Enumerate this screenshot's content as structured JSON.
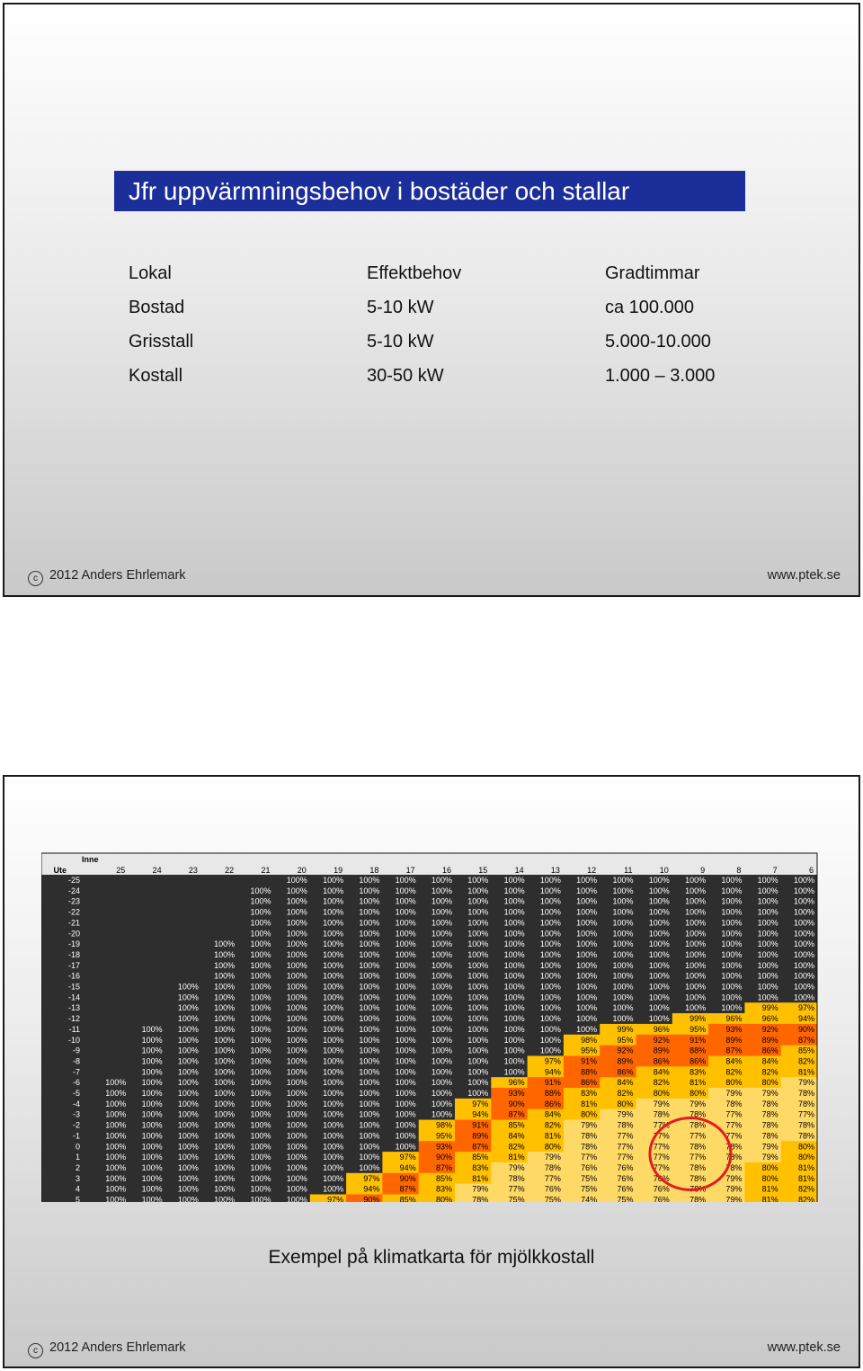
{
  "slide1": {
    "title": "Jfr uppvärmningsbehov i bostäder och stallar",
    "rows": [
      [
        "Lokal",
        "Effektbehov",
        "Gradtimmar"
      ],
      [
        "Bostad",
        "5-10 kW",
        "ca 100.000"
      ],
      [
        "Grisstall",
        "5-10 kW",
        "5.000-10.000"
      ],
      [
        "Kostall",
        "30-50 kW",
        "1.000 – 3.000"
      ]
    ],
    "footer_left": "2012 Anders Ehrlemark",
    "footer_right": "www.ptek.se"
  },
  "slide2": {
    "caption": "Exempel på klimatkarta för mjölkkostall",
    "footer_left": "2012 Anders Ehrlemark",
    "footer_right": "www.ptek.se"
  },
  "colors": {
    "title_bg": "#1c2e9a",
    "table_dark": "#2e2e2e",
    "yellow": "#ffc000",
    "orange": "#ff6600",
    "highlight_circle": "#e31b23"
  },
  "chart_data": {
    "type": "heatmap",
    "corner_label_top": "Inne",
    "corner_label_left": "Ute",
    "x": [
      25,
      24,
      23,
      22,
      21,
      20,
      19,
      18,
      17,
      16,
      15,
      14,
      13,
      12,
      11,
      10,
      9,
      8,
      7,
      6
    ],
    "y": [
      -25,
      -24,
      -23,
      -22,
      -21,
      -20,
      -19,
      -18,
      -17,
      -16,
      -15,
      -14,
      -13,
      -12,
      -11,
      -10,
      -9,
      -8,
      -7,
      -6,
      -5,
      -4,
      -3,
      -2,
      -1,
      0,
      1,
      2,
      3,
      4,
      5
    ],
    "values": [
      [
        null,
        null,
        null,
        null,
        null,
        100,
        100,
        100,
        100,
        100,
        100,
        100,
        100,
        100,
        100,
        100,
        100,
        100,
        100,
        100
      ],
      [
        null,
        null,
        null,
        null,
        100,
        100,
        100,
        100,
        100,
        100,
        100,
        100,
        100,
        100,
        100,
        100,
        100,
        100,
        100,
        100
      ],
      [
        null,
        null,
        null,
        null,
        100,
        100,
        100,
        100,
        100,
        100,
        100,
        100,
        100,
        100,
        100,
        100,
        100,
        100,
        100,
        100
      ],
      [
        null,
        null,
        null,
        null,
        100,
        100,
        100,
        100,
        100,
        100,
        100,
        100,
        100,
        100,
        100,
        100,
        100,
        100,
        100,
        100
      ],
      [
        null,
        null,
        null,
        null,
        100,
        100,
        100,
        100,
        100,
        100,
        100,
        100,
        100,
        100,
        100,
        100,
        100,
        100,
        100,
        100
      ],
      [
        null,
        null,
        null,
        null,
        100,
        100,
        100,
        100,
        100,
        100,
        100,
        100,
        100,
        100,
        100,
        100,
        100,
        100,
        100,
        100
      ],
      [
        null,
        null,
        null,
        100,
        100,
        100,
        100,
        100,
        100,
        100,
        100,
        100,
        100,
        100,
        100,
        100,
        100,
        100,
        100,
        100
      ],
      [
        null,
        null,
        null,
        100,
        100,
        100,
        100,
        100,
        100,
        100,
        100,
        100,
        100,
        100,
        100,
        100,
        100,
        100,
        100,
        100
      ],
      [
        null,
        null,
        null,
        100,
        100,
        100,
        100,
        100,
        100,
        100,
        100,
        100,
        100,
        100,
        100,
        100,
        100,
        100,
        100,
        100
      ],
      [
        null,
        null,
        null,
        100,
        100,
        100,
        100,
        100,
        100,
        100,
        100,
        100,
        100,
        100,
        100,
        100,
        100,
        100,
        100,
        100
      ],
      [
        null,
        null,
        100,
        100,
        100,
        100,
        100,
        100,
        100,
        100,
        100,
        100,
        100,
        100,
        100,
        100,
        100,
        100,
        100,
        100
      ],
      [
        null,
        null,
        100,
        100,
        100,
        100,
        100,
        100,
        100,
        100,
        100,
        100,
        100,
        100,
        100,
        100,
        100,
        100,
        100,
        100
      ],
      [
        null,
        null,
        100,
        100,
        100,
        100,
        100,
        100,
        100,
        100,
        100,
        100,
        100,
        100,
        100,
        100,
        100,
        100,
        99,
        97
      ],
      [
        null,
        null,
        100,
        100,
        100,
        100,
        100,
        100,
        100,
        100,
        100,
        100,
        100,
        100,
        100,
        100,
        99,
        96,
        96,
        94
      ],
      [
        null,
        100,
        100,
        100,
        100,
        100,
        100,
        100,
        100,
        100,
        100,
        100,
        100,
        100,
        99,
        96,
        95,
        93,
        92,
        90
      ],
      [
        null,
        100,
        100,
        100,
        100,
        100,
        100,
        100,
        100,
        100,
        100,
        100,
        100,
        98,
        95,
        92,
        91,
        89,
        89,
        87
      ],
      [
        null,
        100,
        100,
        100,
        100,
        100,
        100,
        100,
        100,
        100,
        100,
        100,
        100,
        95,
        92,
        89,
        88,
        87,
        86,
        85
      ],
      [
        null,
        100,
        100,
        100,
        100,
        100,
        100,
        100,
        100,
        100,
        100,
        100,
        97,
        91,
        89,
        86,
        86,
        84,
        84,
        82
      ],
      [
        null,
        100,
        100,
        100,
        100,
        100,
        100,
        100,
        100,
        100,
        100,
        100,
        94,
        88,
        86,
        84,
        83,
        82,
        82,
        81
      ],
      [
        100,
        100,
        100,
        100,
        100,
        100,
        100,
        100,
        100,
        100,
        100,
        96,
        91,
        86,
        84,
        82,
        81,
        80,
        80,
        79
      ],
      [
        100,
        100,
        100,
        100,
        100,
        100,
        100,
        100,
        100,
        100,
        100,
        93,
        88,
        83,
        82,
        80,
        80,
        79,
        79,
        78
      ],
      [
        100,
        100,
        100,
        100,
        100,
        100,
        100,
        100,
        100,
        100,
        97,
        90,
        86,
        81,
        80,
        79,
        79,
        78,
        78,
        78
      ],
      [
        100,
        100,
        100,
        100,
        100,
        100,
        100,
        100,
        100,
        100,
        94,
        87,
        84,
        80,
        79,
        78,
        78,
        77,
        78,
        77
      ],
      [
        100,
        100,
        100,
        100,
        100,
        100,
        100,
        100,
        100,
        98,
        91,
        85,
        82,
        79,
        78,
        77,
        78,
        77,
        78,
        78
      ],
      [
        100,
        100,
        100,
        100,
        100,
        100,
        100,
        100,
        100,
        95,
        89,
        84,
        81,
        78,
        77,
        77,
        77,
        77,
        78,
        78
      ],
      [
        100,
        100,
        100,
        100,
        100,
        100,
        100,
        100,
        100,
        93,
        87,
        82,
        80,
        78,
        77,
        77,
        78,
        78,
        79,
        80
      ],
      [
        100,
        100,
        100,
        100,
        100,
        100,
        100,
        100,
        97,
        90,
        85,
        81,
        79,
        77,
        77,
        77,
        77,
        78,
        79,
        80
      ],
      [
        100,
        100,
        100,
        100,
        100,
        100,
        100,
        100,
        94,
        87,
        83,
        79,
        78,
        76,
        76,
        77,
        78,
        78,
        80,
        81
      ],
      [
        100,
        100,
        100,
        100,
        100,
        100,
        100,
        97,
        90,
        85,
        81,
        78,
        77,
        75,
        76,
        76,
        78,
        79,
        80,
        81
      ],
      [
        100,
        100,
        100,
        100,
        100,
        100,
        100,
        94,
        87,
        83,
        79,
        77,
        76,
        75,
        76,
        76,
        78,
        79,
        81,
        82
      ],
      [
        100,
        100,
        100,
        100,
        100,
        100,
        97,
        90,
        85,
        80,
        78,
        75,
        75,
        74,
        75,
        76,
        78,
        79,
        81,
        82
      ]
    ],
    "value_suffix": "%",
    "legend": ""
  }
}
